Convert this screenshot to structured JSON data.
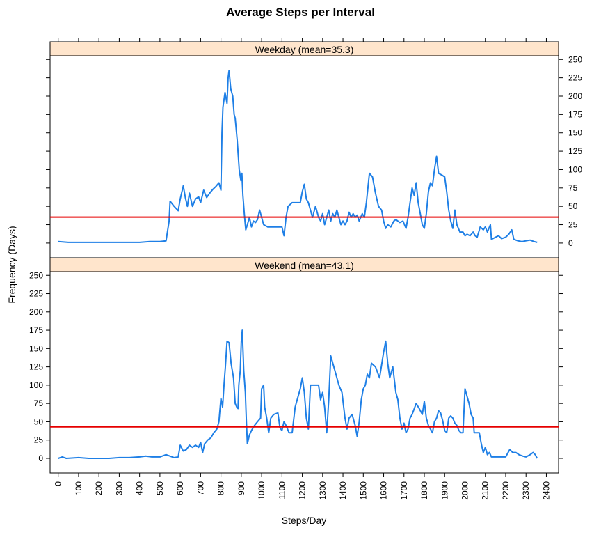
{
  "chart_data": {
    "type": "line",
    "title": "Average Steps per Interval",
    "xlabel": "Steps/Day",
    "ylabel": "Frequency (Days)",
    "xlim": [
      -40,
      2460
    ],
    "ylim": [
      -20,
      255
    ],
    "x_ticks": [
      0,
      100,
      200,
      300,
      400,
      500,
      600,
      700,
      800,
      900,
      1000,
      1100,
      1200,
      1300,
      1400,
      1500,
      1600,
      1700,
      1800,
      1900,
      2000,
      2100,
      2200,
      2300,
      2400
    ],
    "y_ticks": [
      0,
      25,
      50,
      75,
      100,
      125,
      150,
      175,
      200,
      225,
      250
    ],
    "colors": {
      "series": "#1e7fe6",
      "mean": "#e60000",
      "strip": "#ffe5cc"
    },
    "panels": [
      {
        "label": "Weekday (mean=35.3)",
        "mean": 35.3,
        "points": [
          [
            0,
            2
          ],
          [
            50,
            1
          ],
          [
            100,
            1
          ],
          [
            200,
            1
          ],
          [
            300,
            1
          ],
          [
            400,
            1
          ],
          [
            450,
            2
          ],
          [
            500,
            2
          ],
          [
            530,
            3
          ],
          [
            545,
            30
          ],
          [
            550,
            57
          ],
          [
            570,
            50
          ],
          [
            590,
            44
          ],
          [
            600,
            60
          ],
          [
            615,
            78
          ],
          [
            625,
            62
          ],
          [
            635,
            50
          ],
          [
            645,
            68
          ],
          [
            660,
            50
          ],
          [
            675,
            60
          ],
          [
            690,
            63
          ],
          [
            700,
            55
          ],
          [
            715,
            72
          ],
          [
            730,
            62
          ],
          [
            745,
            68
          ],
          [
            760,
            73
          ],
          [
            775,
            77
          ],
          [
            790,
            82
          ],
          [
            800,
            72
          ],
          [
            805,
            150
          ],
          [
            810,
            185
          ],
          [
            820,
            205
          ],
          [
            830,
            190
          ],
          [
            835,
            225
          ],
          [
            840,
            235
          ],
          [
            848,
            210
          ],
          [
            858,
            200
          ],
          [
            865,
            175
          ],
          [
            870,
            170
          ],
          [
            880,
            140
          ],
          [
            890,
            100
          ],
          [
            898,
            85
          ],
          [
            903,
            95
          ],
          [
            908,
            65
          ],
          [
            915,
            40
          ],
          [
            922,
            18
          ],
          [
            930,
            25
          ],
          [
            940,
            35
          ],
          [
            950,
            22
          ],
          [
            960,
            30
          ],
          [
            970,
            28
          ],
          [
            980,
            32
          ],
          [
            990,
            45
          ],
          [
            1000,
            35
          ],
          [
            1010,
            25
          ],
          [
            1030,
            22
          ],
          [
            1050,
            22
          ],
          [
            1075,
            22
          ],
          [
            1100,
            22
          ],
          [
            1110,
            10
          ],
          [
            1120,
            35
          ],
          [
            1130,
            50
          ],
          [
            1150,
            55
          ],
          [
            1170,
            55
          ],
          [
            1190,
            55
          ],
          [
            1200,
            70
          ],
          [
            1210,
            80
          ],
          [
            1220,
            60
          ],
          [
            1230,
            55
          ],
          [
            1240,
            45
          ],
          [
            1250,
            35
          ],
          [
            1265,
            50
          ],
          [
            1280,
            35
          ],
          [
            1290,
            30
          ],
          [
            1300,
            40
          ],
          [
            1310,
            25
          ],
          [
            1320,
            35
          ],
          [
            1330,
            45
          ],
          [
            1340,
            30
          ],
          [
            1350,
            40
          ],
          [
            1360,
            35
          ],
          [
            1370,
            45
          ],
          [
            1380,
            35
          ],
          [
            1390,
            25
          ],
          [
            1400,
            30
          ],
          [
            1410,
            25
          ],
          [
            1420,
            30
          ],
          [
            1430,
            42
          ],
          [
            1440,
            35
          ],
          [
            1450,
            40
          ],
          [
            1460,
            35
          ],
          [
            1470,
            38
          ],
          [
            1480,
            30
          ],
          [
            1495,
            40
          ],
          [
            1505,
            35
          ],
          [
            1515,
            55
          ],
          [
            1530,
            95
          ],
          [
            1545,
            90
          ],
          [
            1560,
            68
          ],
          [
            1575,
            50
          ],
          [
            1590,
            45
          ],
          [
            1600,
            30
          ],
          [
            1610,
            20
          ],
          [
            1620,
            25
          ],
          [
            1635,
            22
          ],
          [
            1650,
            30
          ],
          [
            1660,
            32
          ],
          [
            1680,
            28
          ],
          [
            1695,
            30
          ],
          [
            1710,
            20
          ],
          [
            1720,
            35
          ],
          [
            1730,
            55
          ],
          [
            1740,
            75
          ],
          [
            1750,
            65
          ],
          [
            1760,
            82
          ],
          [
            1770,
            55
          ],
          [
            1780,
            40
          ],
          [
            1790,
            25
          ],
          [
            1800,
            20
          ],
          [
            1810,
            40
          ],
          [
            1820,
            70
          ],
          [
            1830,
            82
          ],
          [
            1840,
            78
          ],
          [
            1850,
            100
          ],
          [
            1860,
            118
          ],
          [
            1870,
            95
          ],
          [
            1890,
            92
          ],
          [
            1900,
            90
          ],
          [
            1910,
            70
          ],
          [
            1920,
            45
          ],
          [
            1930,
            30
          ],
          [
            1940,
            20
          ],
          [
            1950,
            45
          ],
          [
            1960,
            25
          ],
          [
            1975,
            15
          ],
          [
            1990,
            15
          ],
          [
            2000,
            10
          ],
          [
            2010,
            12
          ],
          [
            2025,
            10
          ],
          [
            2040,
            15
          ],
          [
            2050,
            10
          ],
          [
            2060,
            8
          ],
          [
            2075,
            22
          ],
          [
            2090,
            18
          ],
          [
            2100,
            22
          ],
          [
            2110,
            15
          ],
          [
            2125,
            25
          ],
          [
            2130,
            5
          ],
          [
            2150,
            8
          ],
          [
            2165,
            10
          ],
          [
            2180,
            6
          ],
          [
            2200,
            8
          ],
          [
            2215,
            12
          ],
          [
            2230,
            18
          ],
          [
            2240,
            5
          ],
          [
            2260,
            3
          ],
          [
            2280,
            2
          ],
          [
            2300,
            3
          ],
          [
            2320,
            4
          ],
          [
            2340,
            2
          ],
          [
            2355,
            1
          ]
        ]
      },
      {
        "label": "Weekend (mean=43.1)",
        "mean": 43.1,
        "points": [
          [
            0,
            0
          ],
          [
            20,
            2
          ],
          [
            40,
            0
          ],
          [
            100,
            1
          ],
          [
            150,
            0
          ],
          [
            200,
            0
          ],
          [
            250,
            0
          ],
          [
            300,
            1
          ],
          [
            350,
            1
          ],
          [
            400,
            2
          ],
          [
            430,
            3
          ],
          [
            460,
            2
          ],
          [
            500,
            2
          ],
          [
            530,
            5
          ],
          [
            550,
            3
          ],
          [
            570,
            1
          ],
          [
            590,
            2
          ],
          [
            600,
            18
          ],
          [
            615,
            10
          ],
          [
            630,
            12
          ],
          [
            645,
            18
          ],
          [
            660,
            15
          ],
          [
            675,
            18
          ],
          [
            690,
            15
          ],
          [
            700,
            22
          ],
          [
            710,
            8
          ],
          [
            720,
            20
          ],
          [
            735,
            25
          ],
          [
            750,
            28
          ],
          [
            765,
            35
          ],
          [
            780,
            40
          ],
          [
            790,
            50
          ],
          [
            800,
            82
          ],
          [
            808,
            70
          ],
          [
            815,
            100
          ],
          [
            822,
            125
          ],
          [
            830,
            160
          ],
          [
            840,
            158
          ],
          [
            850,
            130
          ],
          [
            862,
            110
          ],
          [
            870,
            75
          ],
          [
            878,
            70
          ],
          [
            884,
            68
          ],
          [
            888,
            100
          ],
          [
            895,
            120
          ],
          [
            900,
            160
          ],
          [
            905,
            175
          ],
          [
            912,
            120
          ],
          [
            920,
            90
          ],
          [
            925,
            50
          ],
          [
            930,
            20
          ],
          [
            940,
            32
          ],
          [
            950,
            38
          ],
          [
            965,
            45
          ],
          [
            980,
            50
          ],
          [
            995,
            55
          ],
          [
            1000,
            95
          ],
          [
            1010,
            100
          ],
          [
            1015,
            70
          ],
          [
            1025,
            55
          ],
          [
            1035,
            35
          ],
          [
            1045,
            55
          ],
          [
            1060,
            60
          ],
          [
            1080,
            62
          ],
          [
            1090,
            42
          ],
          [
            1100,
            38
          ],
          [
            1110,
            50
          ],
          [
            1120,
            45
          ],
          [
            1135,
            35
          ],
          [
            1150,
            35
          ],
          [
            1165,
            70
          ],
          [
            1180,
            85
          ],
          [
            1190,
            95
          ],
          [
            1200,
            110
          ],
          [
            1210,
            90
          ],
          [
            1220,
            55
          ],
          [
            1230,
            40
          ],
          [
            1240,
            100
          ],
          [
            1260,
            100
          ],
          [
            1280,
            100
          ],
          [
            1290,
            80
          ],
          [
            1300,
            90
          ],
          [
            1310,
            70
          ],
          [
            1320,
            35
          ],
          [
            1330,
            80
          ],
          [
            1340,
            140
          ],
          [
            1360,
            120
          ],
          [
            1380,
            100
          ],
          [
            1395,
            90
          ],
          [
            1410,
            55
          ],
          [
            1420,
            40
          ],
          [
            1430,
            55
          ],
          [
            1445,
            60
          ],
          [
            1460,
            45
          ],
          [
            1470,
            30
          ],
          [
            1480,
            50
          ],
          [
            1490,
            80
          ],
          [
            1500,
            95
          ],
          [
            1510,
            100
          ],
          [
            1520,
            115
          ],
          [
            1530,
            110
          ],
          [
            1540,
            130
          ],
          [
            1560,
            125
          ],
          [
            1580,
            110
          ],
          [
            1600,
            145
          ],
          [
            1610,
            160
          ],
          [
            1620,
            130
          ],
          [
            1630,
            110
          ],
          [
            1645,
            125
          ],
          [
            1660,
            90
          ],
          [
            1670,
            80
          ],
          [
            1680,
            55
          ],
          [
            1690,
            40
          ],
          [
            1700,
            48
          ],
          [
            1710,
            35
          ],
          [
            1720,
            40
          ],
          [
            1730,
            55
          ],
          [
            1740,
            60
          ],
          [
            1760,
            75
          ],
          [
            1775,
            68
          ],
          [
            1790,
            60
          ],
          [
            1800,
            78
          ],
          [
            1810,
            55
          ],
          [
            1820,
            45
          ],
          [
            1830,
            40
          ],
          [
            1840,
            35
          ],
          [
            1850,
            50
          ],
          [
            1860,
            55
          ],
          [
            1870,
            65
          ],
          [
            1880,
            62
          ],
          [
            1890,
            52
          ],
          [
            1900,
            38
          ],
          [
            1910,
            35
          ],
          [
            1920,
            55
          ],
          [
            1930,
            58
          ],
          [
            1940,
            55
          ],
          [
            1950,
            48
          ],
          [
            1960,
            45
          ],
          [
            1970,
            38
          ],
          [
            1980,
            35
          ],
          [
            1990,
            35
          ],
          [
            2000,
            95
          ],
          [
            2010,
            85
          ],
          [
            2020,
            75
          ],
          [
            2030,
            60
          ],
          [
            2040,
            55
          ],
          [
            2045,
            35
          ],
          [
            2060,
            35
          ],
          [
            2070,
            35
          ],
          [
            2080,
            20
          ],
          [
            2090,
            8
          ],
          [
            2100,
            15
          ],
          [
            2110,
            5
          ],
          [
            2120,
            8
          ],
          [
            2130,
            2
          ],
          [
            2150,
            2
          ],
          [
            2175,
            2
          ],
          [
            2200,
            2
          ],
          [
            2220,
            12
          ],
          [
            2235,
            8
          ],
          [
            2250,
            8
          ],
          [
            2265,
            5
          ],
          [
            2285,
            3
          ],
          [
            2300,
            2
          ],
          [
            2320,
            5
          ],
          [
            2335,
            8
          ],
          [
            2345,
            5
          ],
          [
            2355,
            0
          ]
        ]
      }
    ]
  }
}
